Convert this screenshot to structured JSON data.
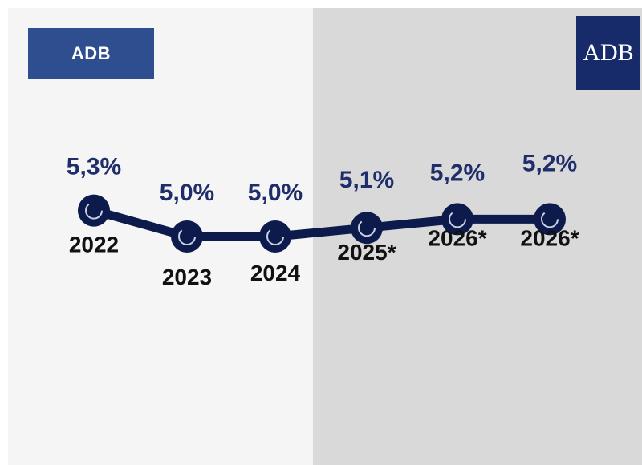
{
  "logos": {
    "left_badge": "ADB",
    "right_badge": "ADB"
  },
  "colors": {
    "line": "#0d1b4c",
    "value_text": "#1f2e6b",
    "year_text": "#111111",
    "left_background": "#f5f5f5",
    "right_background": "#d9d9d9",
    "left_badge_bg": "#2e4e8f",
    "right_badge_bg": "#172b6b"
  },
  "chart_data": {
    "type": "line",
    "categories": [
      "2022",
      "2023",
      "2024",
      "2025*",
      "2026*",
      "2026*"
    ],
    "values": [
      5.3,
      5.0,
      5.0,
      5.1,
      5.2,
      5.2
    ],
    "value_labels": [
      "5,3%",
      "5,0%",
      "5,0%",
      "5,1%",
      "5,2%",
      "5,2%"
    ],
    "shaded_from_index": 3
  }
}
